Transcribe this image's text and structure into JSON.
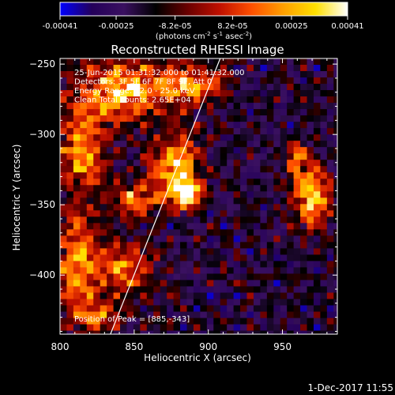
{
  "chart_data": {
    "type": "heatmap",
    "title": "Reconstructed RHESSI Image",
    "colorbar": {
      "tick_labels": [
        "-0.00041",
        "-0.00025",
        "-8.2e-05",
        "8.2e-05",
        "0.00025",
        "0.00041"
      ],
      "range": [
        -0.00041,
        0.00041
      ],
      "units_parts": {
        "prefix": "(photons cm",
        "exp1": "-2",
        "mid1": " s",
        "exp2": "-1",
        "mid2": " asec",
        "exp3": "-2",
        "suffix": ")"
      },
      "stops": [
        "#0000ff",
        "#24005a",
        "#3a1060",
        "#000000",
        "#6a0000",
        "#c01000",
        "#ff5000",
        "#ffa000",
        "#ffe000",
        "#ffffff"
      ]
    },
    "xlabel": "Heliocentric X (arcsec)",
    "ylabel": "Heliocentric Y (arcsec)",
    "xlim": [
      800,
      987
    ],
    "ylim": [
      -442,
      -246
    ],
    "xticks": [
      800,
      850,
      900,
      950
    ],
    "yticks": [
      -250,
      -300,
      -350,
      -400
    ],
    "xtick_labels": [
      "800",
      "850",
      "900",
      "950"
    ],
    "ytick_labels": [
      "−250",
      "−300",
      "−350",
      "−400"
    ],
    "annotations": [
      "25-Jun-2015 01:31:32.000 to 01:41:32.000",
      "Detectors: 3F 5F 6F 7F 8F 9F, Att 0",
      "Energy Range: 12.0 - 25.0 keV",
      "Clean    Total counts: 2.65E+04"
    ],
    "peak_label": "Position of Peak = [885,-343]",
    "peak": [
      885,
      -343
    ],
    "limb_line": [
      [
        834,
        -442
      ],
      [
        908,
        -246
      ]
    ],
    "hot_regions": [
      {
        "x": 885,
        "y": -343,
        "rx": 9,
        "ry": 9,
        "amp": 1.0
      },
      {
        "x": 843,
        "y": -268,
        "rx": 28,
        "ry": 20,
        "amp": 0.75
      },
      {
        "x": 890,
        "y": -265,
        "rx": 20,
        "ry": 14,
        "amp": 0.6
      },
      {
        "x": 815,
        "y": -310,
        "rx": 16,
        "ry": 30,
        "amp": 0.6
      },
      {
        "x": 878,
        "y": -322,
        "rx": 16,
        "ry": 22,
        "amp": 0.7
      },
      {
        "x": 812,
        "y": -392,
        "rx": 14,
        "ry": 34,
        "amp": 0.65
      },
      {
        "x": 845,
        "y": -395,
        "rx": 18,
        "ry": 18,
        "amp": 0.55
      },
      {
        "x": 970,
        "y": -345,
        "rx": 12,
        "ry": 20,
        "amp": 0.75
      },
      {
        "x": 960,
        "y": -318,
        "rx": 8,
        "ry": 12,
        "amp": 0.5
      },
      {
        "x": 850,
        "y": -346,
        "rx": 16,
        "ry": 12,
        "amp": 0.55
      },
      {
        "x": 825,
        "y": -430,
        "rx": 16,
        "ry": 10,
        "amp": 0.45
      }
    ]
  },
  "footer": {
    "timestamp": "1-Dec-2017 11:55"
  }
}
